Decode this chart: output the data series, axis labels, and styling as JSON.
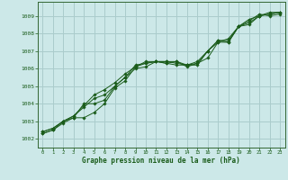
{
  "title": "Graphe pression niveau de la mer (hPa)",
  "bg_color": "#cce8e8",
  "grid_color": "#aacccc",
  "line_color": "#1a5c1a",
  "spine_color": "#336633",
  "x_ticks": [
    0,
    1,
    2,
    3,
    4,
    5,
    6,
    7,
    8,
    9,
    10,
    11,
    12,
    13,
    14,
    15,
    16,
    17,
    18,
    19,
    20,
    21,
    22,
    23
  ],
  "y_ticks": [
    1002,
    1003,
    1004,
    1005,
    1006,
    1007,
    1008,
    1009
  ],
  "xlim": [
    -0.5,
    23.5
  ],
  "ylim": [
    1001.5,
    1009.8
  ],
  "series": [
    [
      1002.3,
      1002.5,
      1002.9,
      1003.2,
      1003.2,
      1003.5,
      1004.0,
      1004.9,
      1005.3,
      1006.1,
      1006.3,
      1006.4,
      1006.3,
      1006.2,
      1006.2,
      1006.2,
      1007.0,
      1007.6,
      1007.6,
      1008.4,
      1008.5,
      1009.0,
      1009.2,
      1009.2
    ],
    [
      1002.3,
      1002.5,
      1003.0,
      1003.2,
      1004.0,
      1004.0,
      1004.2,
      1005.0,
      1005.5,
      1006.0,
      1006.1,
      1006.4,
      1006.3,
      1006.4,
      1006.1,
      1006.3,
      1006.6,
      1007.5,
      1007.5,
      1008.4,
      1008.7,
      1009.1,
      1009.0,
      1009.1
    ],
    [
      1002.4,
      1002.6,
      1003.0,
      1003.3,
      1003.8,
      1004.3,
      1004.5,
      1005.0,
      1005.5,
      1006.2,
      1006.3,
      1006.4,
      1006.4,
      1006.3,
      1006.2,
      1006.4,
      1007.0,
      1007.6,
      1007.5,
      1008.4,
      1008.6,
      1009.0,
      1009.1,
      1009.2
    ],
    [
      1002.4,
      1002.6,
      1003.0,
      1003.3,
      1003.9,
      1004.5,
      1004.8,
      1005.2,
      1005.7,
      1006.1,
      1006.4,
      1006.4,
      1006.4,
      1006.4,
      1006.2,
      1006.3,
      1007.0,
      1007.5,
      1007.7,
      1008.4,
      1008.8,
      1009.0,
      1009.1,
      1009.2
    ]
  ]
}
